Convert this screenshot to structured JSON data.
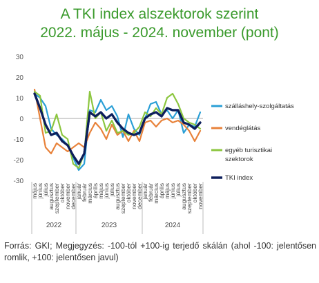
{
  "title_line1": "A TKI index alszektorok szerint",
  "title_line2": "2022. május - 2024. november (pont)",
  "footnote": "Forrás: GKI; Megjegyzés: -100-tól +100-ig terjedő skálán (ahol -100: jelentősen romlik, +100: jelentősen javul)",
  "colors": {
    "title": "#3a9a2c",
    "szallashely": "#2a9fd6",
    "vendeglatas": "#e8823a",
    "egyeb": "#8cc63f",
    "tki": "#0d1f5c"
  },
  "chart_data": {
    "type": "line",
    "ylim": [
      -30,
      30
    ],
    "yticks": [
      30,
      20,
      10,
      0,
      -10,
      -20,
      -30
    ],
    "grid": false,
    "legend": "right",
    "x": [
      "május",
      "június",
      "július",
      "augusztus",
      "szeptember",
      "október",
      "november",
      "december",
      "január",
      "február",
      "március",
      "április",
      "május",
      "június",
      "július",
      "augusztus",
      "szeptember",
      "október",
      "november",
      "december",
      "január",
      "február",
      "március",
      "április",
      "május",
      "június",
      "július",
      "augusztus",
      "szeptember",
      "október",
      "november"
    ],
    "year_groups": [
      {
        "label": "2022",
        "count": 8
      },
      {
        "label": "2023",
        "count": 12
      },
      {
        "label": "2024",
        "count": 11
      }
    ],
    "series": [
      {
        "name": "szálláshely-szolgáltatás",
        "color": "#2a9fd6",
        "values": [
          12,
          10,
          6,
          -5,
          -8,
          -10,
          -13,
          -19,
          -25,
          -22,
          4,
          3,
          9,
          4,
          6,
          1,
          -9,
          2,
          -5,
          -8,
          0,
          7,
          8,
          2,
          4,
          0,
          4,
          -7,
          -3,
          -4,
          3
        ]
      },
      {
        "name": "vendéglátás",
        "color": "#e8823a",
        "values": [
          14,
          0,
          -14,
          -17,
          -12,
          -14,
          -16,
          -14,
          -12,
          -14,
          -7,
          -2,
          -5,
          -10,
          -3,
          -8,
          -6,
          -11,
          -6,
          -11,
          -2,
          -1,
          -4,
          -1,
          0,
          -2,
          -1,
          -3,
          -6,
          -11,
          -6
        ]
      },
      {
        "name": "egyéb turisztikai szektorok",
        "color": "#8cc63f",
        "values": [
          13,
          11,
          -7,
          -6,
          2,
          -8,
          -10,
          -22,
          -24,
          -17,
          13,
          0,
          3,
          -6,
          -1,
          -7,
          -6,
          -8,
          -7,
          -4,
          3,
          1,
          5,
          2,
          10,
          12,
          7,
          0,
          -2,
          -3,
          -5
        ]
      },
      {
        "name": "TKI index",
        "color": "#0d1f5c",
        "values": [
          12,
          5,
          -3,
          -8,
          -7,
          -11,
          -13,
          -18,
          -22,
          -17,
          3,
          1,
          3,
          0,
          2,
          -2,
          -5,
          -7,
          -8,
          -7,
          0,
          2,
          3,
          1,
          5,
          4,
          4,
          -2,
          -3,
          -5,
          -2
        ]
      }
    ]
  }
}
